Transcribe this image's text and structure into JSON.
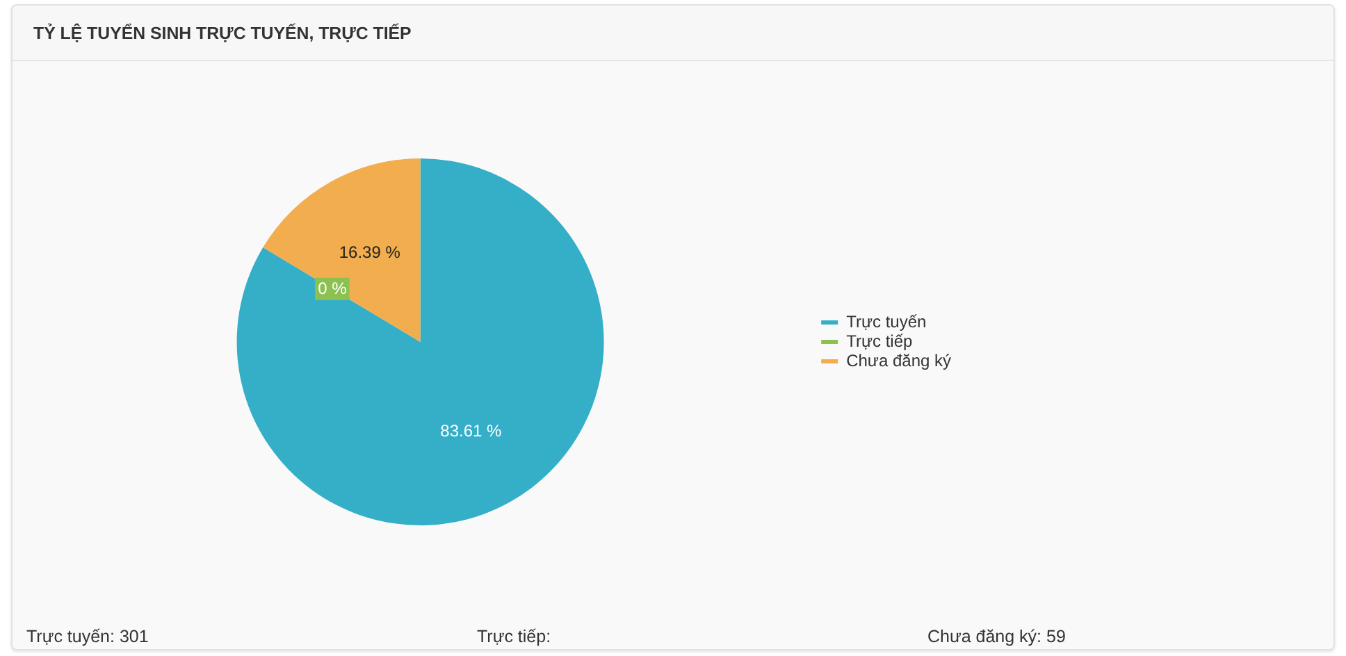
{
  "chart_data": {
    "type": "pie",
    "title": "TỶ LỆ TUYỂN SINH TRỰC TUYẾN, TRỰC TIẾP",
    "categories": [
      "Trực tuyến",
      "Trực tiếp",
      "Chưa đăng ký"
    ],
    "values": [
      83.61,
      0,
      16.39
    ],
    "colors": [
      "#35afc8",
      "#8cc152",
      "#f2ad4e"
    ],
    "value_labels": [
      "83.61 %",
      "0 %",
      "16.39 %"
    ],
    "legend": "right",
    "annotations": [
      "Trực tuyến: 301",
      "Trực tiếp:",
      "Chưa đăng ký: 59"
    ]
  }
}
